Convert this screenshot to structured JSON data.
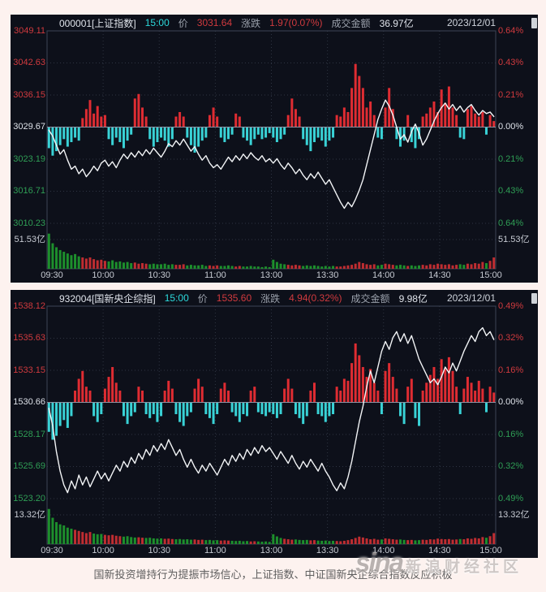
{
  "page": {
    "footer_caption": "国新投资增持行为提振市场信心，上证指数、中证国新央企综合指数反应积极",
    "watermark_logo": "sina",
    "watermark_text": "新浪财经社区"
  },
  "colors": {
    "panel_bg": "#0d101a",
    "up_red": "#d03a3e",
    "bar_red": "#df2c32",
    "bar_cyan": "#39d2d6",
    "vol_green": "#1d8f2c",
    "vol_red": "#bf2d31",
    "down_green": "#2f9e55",
    "line_white": "#f2f4f6",
    "grid": "#2e3442",
    "frame": "#3d4456",
    "zero_line": "#8b93a3",
    "axis_neutral": "#c6cad2",
    "time_cyan": "#2cd9db"
  },
  "chart_data": [
    {
      "type": "line+bar",
      "header": {
        "code": "000001[上证指数]",
        "time": "15:00",
        "price_label": "价",
        "price": "3031.64",
        "change_label": "涨跌",
        "change": "1.97(0.07%)",
        "amount_label": "成交金额",
        "amount": "36.97亿",
        "date": "2023/12/01"
      },
      "y_left": [
        "3049.11",
        "3042.63",
        "3036.15",
        "3029.67",
        "3023.19",
        "3016.71",
        "3010.23"
      ],
      "y_right": [
        "0.64%",
        "0.43%",
        "0.21%",
        "0.00%",
        "0.21%",
        "0.43%",
        "0.64%"
      ],
      "vol_label": "51.53亿",
      "x_labels": [
        "09:30",
        "10:00",
        "10:30",
        "11:00",
        "13:00",
        "13:30",
        "14:00",
        "14:30",
        "15:00"
      ],
      "prev_close": 3029.67,
      "pct_axis_max": 0.64,
      "volume_scale": 51.53,
      "price_line_pct": [
        -0.02,
        -0.06,
        -0.12,
        -0.18,
        -0.15,
        -0.22,
        -0.28,
        -0.26,
        -0.31,
        -0.28,
        -0.33,
        -0.3,
        -0.26,
        -0.29,
        -0.24,
        -0.22,
        -0.26,
        -0.23,
        -0.27,
        -0.22,
        -0.18,
        -0.21,
        -0.17,
        -0.2,
        -0.16,
        -0.19,
        -0.15,
        -0.18,
        -0.14,
        -0.17,
        -0.2,
        -0.16,
        -0.11,
        -0.13,
        -0.09,
        -0.12,
        -0.08,
        -0.12,
        -0.16,
        -0.13,
        -0.18,
        -0.22,
        -0.19,
        -0.24,
        -0.27,
        -0.25,
        -0.28,
        -0.24,
        -0.2,
        -0.23,
        -0.19,
        -0.22,
        -0.18,
        -0.21,
        -0.17,
        -0.2,
        -0.22,
        -0.19,
        -0.23,
        -0.21,
        -0.24,
        -0.21,
        -0.25,
        -0.28,
        -0.24,
        -0.27,
        -0.31,
        -0.28,
        -0.32,
        -0.35,
        -0.31,
        -0.34,
        -0.3,
        -0.34,
        -0.38,
        -0.35,
        -0.4,
        -0.45,
        -0.5,
        -0.54,
        -0.5,
        -0.53,
        -0.48,
        -0.42,
        -0.35,
        -0.25,
        -0.15,
        -0.05,
        0.05,
        0.12,
        0.18,
        0.14,
        0.08,
        0,
        -0.08,
        -0.05,
        -0.1,
        -0.03,
        0.02,
        -0.04,
        -0.12,
        -0.08,
        -0.02,
        0.04,
        0.09,
        0.13,
        0.16,
        0.12,
        0.15,
        0.11,
        0.14,
        0.1,
        0.13,
        0.15,
        0.11,
        0.08,
        0.11,
        0.09,
        0.1,
        0.07
      ],
      "minute_bars_pct": [
        -0.14,
        -0.19,
        -0.16,
        -0.12,
        -0.08,
        -0.13,
        -0.1,
        -0.07,
        -0.09,
        0.06,
        0.12,
        0.18,
        0.09,
        0.14,
        0.07,
        0.08,
        -0.08,
        -0.12,
        -0.07,
        -0.1,
        -0.14,
        -0.09,
        -0.05,
        0.19,
        0.22,
        0.13,
        0.07,
        -0.08,
        -0.13,
        -0.1,
        -0.07,
        -0.09,
        -0.13,
        -0.08,
        0.07,
        0.1,
        0.07,
        -0.07,
        -0.12,
        -0.17,
        -0.13,
        -0.09,
        -0.07,
        0.08,
        0.13,
        0.07,
        -0.07,
        -0.1,
        -0.08,
        -0.05,
        0.09,
        0.07,
        -0.07,
        -0.09,
        -0.12,
        -0.08,
        -0.05,
        -0.08,
        -0.07,
        -0.04,
        -0.07,
        -0.1,
        -0.08,
        -0.05,
        0.08,
        0.19,
        0.12,
        0.07,
        -0.08,
        -0.12,
        -0.16,
        -0.1,
        -0.07,
        -0.09,
        -0.13,
        -0.09,
        -0.07,
        0.08,
        0.07,
        0.13,
        0.1,
        0.26,
        0.42,
        0.34,
        0.26,
        0.13,
        0.17,
        0.08,
        -0.07,
        -0.08,
        0.13,
        0.26,
        0.12,
        -0.08,
        -0.13,
        -0.09,
        0.08,
        -0.1,
        -0.14,
        -0.08,
        0.07,
        0.09,
        0.13,
        0.17,
        0.1,
        0.25,
        0.16,
        0.27,
        0.13,
        0.08,
        -0.07,
        -0.08,
        0.12,
        0.14,
        0.09,
        0.07,
        0.1,
        -0.05,
        0.08,
        0.04
      ],
      "volume_bars": [
        62,
        45,
        38,
        33,
        30,
        27,
        24,
        26,
        22,
        20,
        18,
        20,
        17,
        15,
        16,
        14,
        13,
        15,
        12,
        13,
        11,
        12,
        10,
        11,
        9,
        10,
        9,
        8,
        9,
        8,
        8,
        9,
        7,
        8,
        7,
        7,
        8,
        6,
        7,
        6,
        6,
        7,
        5,
        6,
        5,
        6,
        5,
        5,
        6,
        5,
        4,
        5,
        4,
        4,
        5,
        4,
        4,
        3,
        4,
        3,
        16,
        12,
        9,
        8,
        7,
        6,
        7,
        6,
        5,
        6,
        5,
        6,
        5,
        4,
        5,
        4,
        5,
        4,
        4,
        5,
        6,
        7,
        9,
        12,
        10,
        8,
        7,
        8,
        6,
        7,
        9,
        8,
        7,
        6,
        7,
        6,
        5,
        6,
        5,
        6,
        7,
        6,
        8,
        7,
        9,
        8,
        7,
        8,
        6,
        7,
        8,
        7,
        9,
        8,
        10,
        9,
        12,
        10,
        14,
        20
      ]
    },
    {
      "type": "line+bar",
      "header": {
        "code": "932004[国新央企综指]",
        "time": "15:00",
        "price_label": "价",
        "price": "1535.60",
        "change_label": "涨跌",
        "change": "4.94(0.32%)",
        "amount_label": "成交金额",
        "amount": "9.98亿",
        "date": "2023/12/01"
      },
      "y_left": [
        "1538.12",
        "1535.63",
        "1533.15",
        "1530.66",
        "1528.17",
        "1525.69",
        "1523.20"
      ],
      "y_right": [
        "0.49%",
        "0.32%",
        "0.16%",
        "0.00%",
        "0.16%",
        "0.32%",
        "0.49%"
      ],
      "vol_label": "13.32亿",
      "x_labels": [
        "09:30",
        "10:00",
        "10:30",
        "11:00",
        "13:00",
        "13:30",
        "14:00",
        "14:30",
        "15:00"
      ],
      "prev_close": 1530.66,
      "pct_axis_max": 0.49,
      "volume_scale": 13.32,
      "price_line_pct": [
        -0.03,
        -0.12,
        -0.25,
        -0.35,
        -0.42,
        -0.46,
        -0.4,
        -0.44,
        -0.37,
        -0.42,
        -0.38,
        -0.43,
        -0.39,
        -0.35,
        -0.39,
        -0.36,
        -0.4,
        -0.36,
        -0.32,
        -0.35,
        -0.3,
        -0.33,
        -0.28,
        -0.31,
        -0.26,
        -0.29,
        -0.24,
        -0.27,
        -0.22,
        -0.25,
        -0.21,
        -0.24,
        -0.19,
        -0.23,
        -0.27,
        -0.24,
        -0.29,
        -0.33,
        -0.29,
        -0.33,
        -0.36,
        -0.32,
        -0.35,
        -0.31,
        -0.34,
        -0.37,
        -0.33,
        -0.29,
        -0.32,
        -0.27,
        -0.3,
        -0.26,
        -0.29,
        -0.24,
        -0.27,
        -0.23,
        -0.26,
        -0.22,
        -0.25,
        -0.23,
        -0.26,
        -0.29,
        -0.25,
        -0.28,
        -0.31,
        -0.27,
        -0.31,
        -0.34,
        -0.3,
        -0.33,
        -0.29,
        -0.32,
        -0.35,
        -0.31,
        -0.35,
        -0.38,
        -0.42,
        -0.45,
        -0.41,
        -0.44,
        -0.38,
        -0.3,
        -0.2,
        -0.1,
        -0.02,
        0.08,
        0.16,
        0.1,
        0.18,
        0.26,
        0.31,
        0.27,
        0.33,
        0.36,
        0.31,
        0.35,
        0.3,
        0.34,
        0.28,
        0.22,
        0.18,
        0.14,
        0.1,
        0.12,
        0.09,
        0.13,
        0.18,
        0.15,
        0.2,
        0.16,
        0.21,
        0.26,
        0.3,
        0.34,
        0.31,
        0.36,
        0.38,
        0.34,
        0.36,
        0.32
      ],
      "minute_bars_pct": [
        -0.15,
        -0.19,
        -0.17,
        -0.12,
        -0.09,
        -0.13,
        -0.07,
        0.06,
        0.12,
        0.16,
        0.08,
        0.06,
        -0.07,
        -0.1,
        -0.06,
        0.07,
        0.13,
        0.18,
        0.1,
        0.06,
        -0.07,
        -0.11,
        -0.07,
        -0.05,
        0.08,
        0.06,
        -0.06,
        -0.08,
        -0.06,
        -0.1,
        -0.07,
        0.06,
        0.11,
        0.07,
        -0.06,
        -0.1,
        -0.12,
        -0.07,
        -0.05,
        0.07,
        0.12,
        0.08,
        -0.06,
        -0.08,
        -0.11,
        -0.06,
        0.07,
        0.1,
        0.06,
        -0.05,
        -0.07,
        -0.1,
        -0.06,
        -0.07,
        0.06,
        0.08,
        -0.05,
        -0.06,
        -0.07,
        -0.05,
        -0.06,
        -0.08,
        -0.06,
        0.07,
        0.12,
        0.07,
        -0.06,
        -0.08,
        -0.11,
        -0.07,
        0.06,
        0.1,
        -0.06,
        -0.07,
        -0.1,
        -0.07,
        -0.06,
        0.08,
        0.06,
        0.12,
        0.11,
        0.2,
        0.3,
        0.24,
        0.18,
        0.13,
        0.17,
        0.1,
        0.06,
        -0.06,
        0.16,
        0.2,
        0.13,
        0.07,
        -0.07,
        -0.11,
        0.08,
        0.12,
        -0.08,
        -0.12,
        0.06,
        0.1,
        0.14,
        0.18,
        0.12,
        0.22,
        0.17,
        0.23,
        0.16,
        0.08,
        -0.06,
        0.07,
        0.13,
        0.1,
        0.06,
        0.11,
        0.07,
        -0.05,
        0.08,
        0.05
      ],
      "volume_bars": [
        16,
        12,
        10,
        9,
        8.5,
        7.5,
        7,
        6.5,
        6,
        5.5,
        5,
        5.5,
        4.8,
        4.5,
        4.6,
        4.2,
        4,
        4.2,
        3.8,
        3.6,
        3.4,
        3.6,
        3.2,
        3,
        3.1,
        2.9,
        2.8,
        2.9,
        2.6,
        2.5,
        2.6,
        2.4,
        2.5,
        2.3,
        2.2,
        2.3,
        2.1,
        2.2,
        2,
        2.1,
        1.9,
        2,
        1.8,
        1.9,
        1.7,
        1.8,
        1.6,
        1.7,
        1.6,
        1.5,
        1.4,
        1.5,
        1.3,
        1.4,
        1.2,
        1.3,
        1.2,
        1.1,
        1.2,
        1,
        4.5,
        3.5,
        2.8,
        2.4,
        2.2,
        2,
        2.1,
        1.9,
        1.8,
        1.9,
        1.7,
        1.8,
        1.6,
        1.5,
        1.6,
        1.4,
        1.5,
        1.4,
        1.3,
        1.5,
        1.8,
        2.2,
        2.8,
        3.4,
        3,
        2.6,
        2.2,
        2.4,
        2,
        2.1,
        2.6,
        2.4,
        2.2,
        2,
        2.1,
        1.9,
        1.8,
        1.9,
        1.7,
        1.8,
        2,
        1.9,
        2.2,
        2.1,
        2.5,
        2.3,
        2.2,
        2.3,
        2,
        2.1,
        2.3,
        2.2,
        2.6,
        2.4,
        2.8,
        2.6,
        3.2,
        2.9,
        3.6,
        5
      ]
    }
  ]
}
